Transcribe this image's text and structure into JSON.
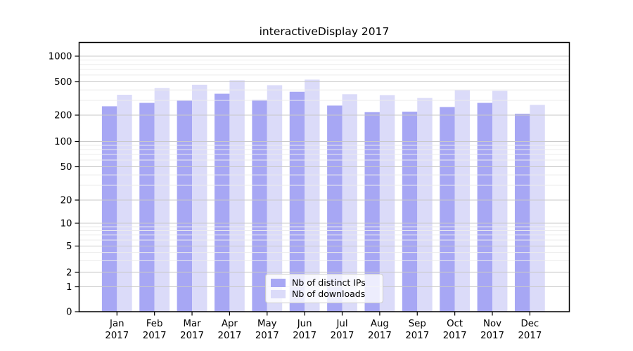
{
  "title": "interactiveDisplay 2017",
  "chart_data": {
    "type": "bar",
    "title": "interactiveDisplay 2017",
    "categories": [
      "Jan",
      "Feb",
      "Mar",
      "Apr",
      "May",
      "Jun",
      "Jul",
      "Aug",
      "Sep",
      "Oct",
      "Nov",
      "Dec"
    ],
    "x_year_label": "2017",
    "series": [
      {
        "name": "Nb of distinct IPs",
        "color": "#a7a7f4",
        "values": [
          255,
          280,
          300,
          360,
          305,
          380,
          260,
          217,
          220,
          250,
          280,
          208
        ]
      },
      {
        "name": "Nb of downloads",
        "color": "#dbdbf9",
        "values": [
          350,
          420,
          460,
          520,
          455,
          530,
          355,
          347,
          320,
          400,
          390,
          265
        ]
      }
    ],
    "yscale": "symlog",
    "yticks": [
      0,
      1,
      2,
      5,
      10,
      20,
      50,
      100,
      200,
      500,
      1000
    ],
    "ytick_labels": [
      "0",
      "1",
      "2",
      "5",
      "10",
      "20",
      "50",
      "100",
      "200",
      "500",
      "1000"
    ],
    "minor_gridlines": [
      3,
      4,
      6,
      7,
      8,
      9,
      30,
      40,
      60,
      70,
      80,
      90,
      300,
      400,
      600,
      700,
      800,
      900
    ],
    "ylim": [
      0,
      1300
    ],
    "grid": true,
    "legend_position": "lower center"
  },
  "legend": {
    "items": [
      {
        "label": "Nb of distinct IPs"
      },
      {
        "label": "Nb of downloads"
      }
    ]
  },
  "colors": {
    "grid_major": "#c9c9c9",
    "grid_minor": "#ebebeb",
    "axis": "#000000",
    "background": "#ffffff"
  }
}
